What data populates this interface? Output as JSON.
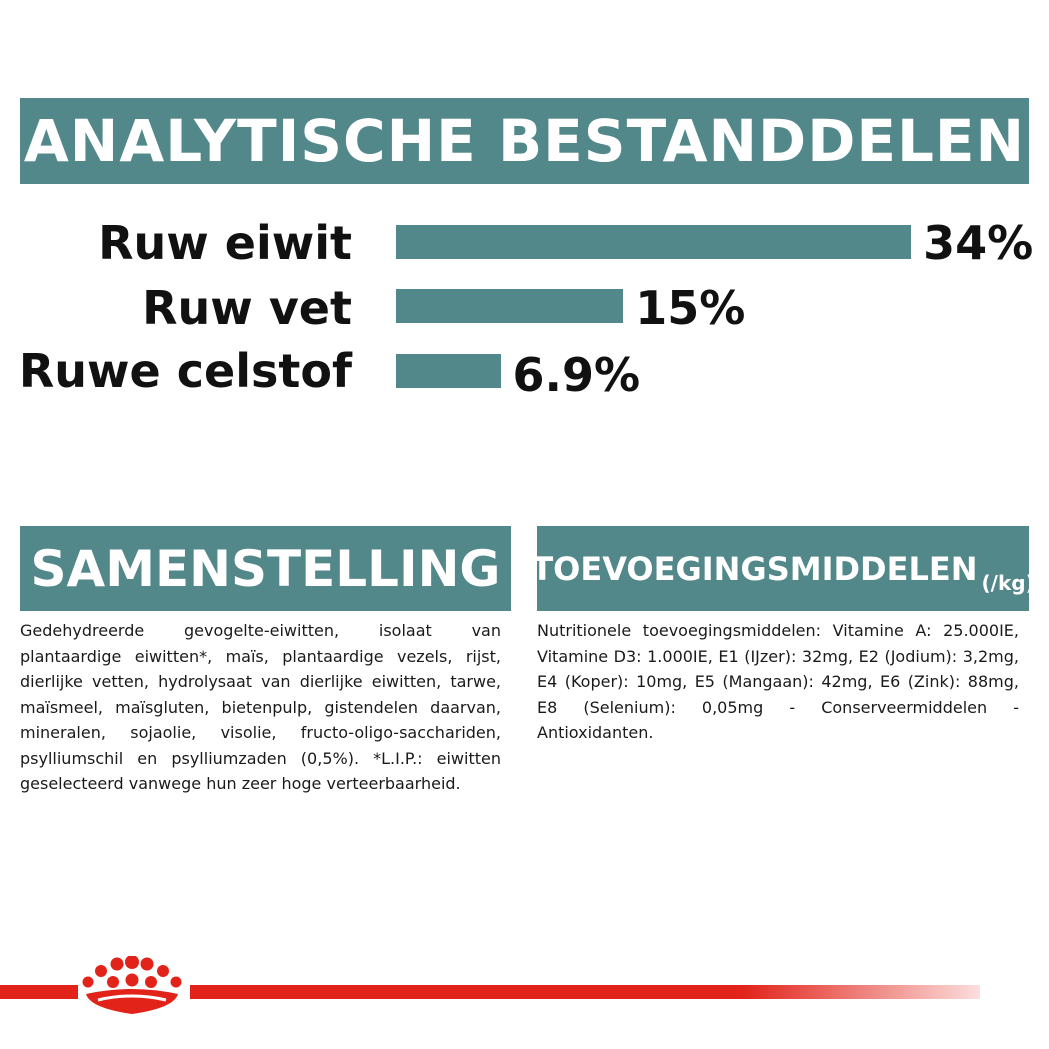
{
  "banner": {
    "title": "ANALYTISCHE BESTANDDELEN"
  },
  "nutrients": [
    {
      "label": "Ruw eiwit",
      "value": "34%",
      "percent": 34
    },
    {
      "label": "Ruw vet",
      "value": "15%",
      "percent": 15
    },
    {
      "label": "Ruwe celstof",
      "value": "6.9%",
      "percent": 6.9
    }
  ],
  "composition": {
    "title": "SAMENSTELLING",
    "text": "Gedehydreerde gevogelte-eiwitten, isolaat van plantaardige eiwitten*, maïs, plantaardige vezels, rijst, dierlijke vetten, hydrolysaat van dierlijke eiwitten, tarwe, maïsmeel, maïsgluten, bietenpulp, gistendelen daarvan, mineralen, sojaolie, visolie, fructo-oligo-sacchariden, psylliumschil en psylliumzaden (0,5%). *L.I.P.: eiwitten geselecteerd vanwege hun zeer hoge verteerbaarheid."
  },
  "additives": {
    "title": "TOEVOEGINGSMIDDELEN",
    "unit": "(/kg)",
    "text": "Nutritionele toevoegingsmiddelen: Vitamine A: 25.000IE, Vitamine D3: 1.000IE, E1 (IJzer): 32mg, E2 (Jodium): 3,2mg, E4 (Koper): 10mg, E5 (Mangaan): 42mg, E6 (Zink): 88mg, E8 (Selenium): 0,05mg - Conserveermiddelen - Antioxidanten."
  },
  "colors": {
    "accent": "#52888a",
    "brand_red": "#e2231a"
  },
  "logo": {
    "icon": "royal-canin-crown-icon"
  }
}
